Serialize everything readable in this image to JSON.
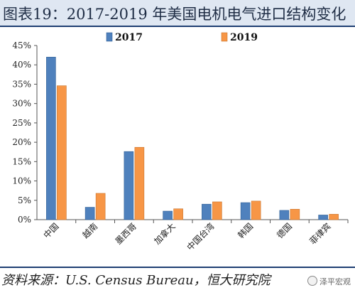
{
  "title": "图表19：2017-2019 年美国电机电气进口结构变化",
  "source": "资料来源：U.S. Census Bureau，恒大研究院",
  "watermark": "泽平宏观",
  "colors": {
    "series_2017": "#4f81bd",
    "series_2019": "#f79646",
    "title_bg": "#dfe7f2",
    "rule": "#1f3f73"
  },
  "chart_data": {
    "type": "bar",
    "categories": [
      "中国",
      "越南",
      "墨西哥",
      "加拿大",
      "中国台湾",
      "韩国",
      "德国",
      "菲律宾"
    ],
    "series": [
      {
        "name": "2017",
        "values": [
          42,
          3.2,
          17.6,
          2.2,
          4.0,
          4.4,
          2.4,
          1.2
        ]
      },
      {
        "name": "2019",
        "values": [
          34.6,
          6.8,
          18.7,
          2.8,
          4.6,
          4.8,
          2.7,
          1.4
        ]
      }
    ],
    "yticks": [
      "0%",
      "5%",
      "10%",
      "15%",
      "20%",
      "25%",
      "30%",
      "35%",
      "40%",
      "45%"
    ],
    "ylim": [
      0,
      45
    ],
    "legend_position": "top",
    "grid": false
  }
}
